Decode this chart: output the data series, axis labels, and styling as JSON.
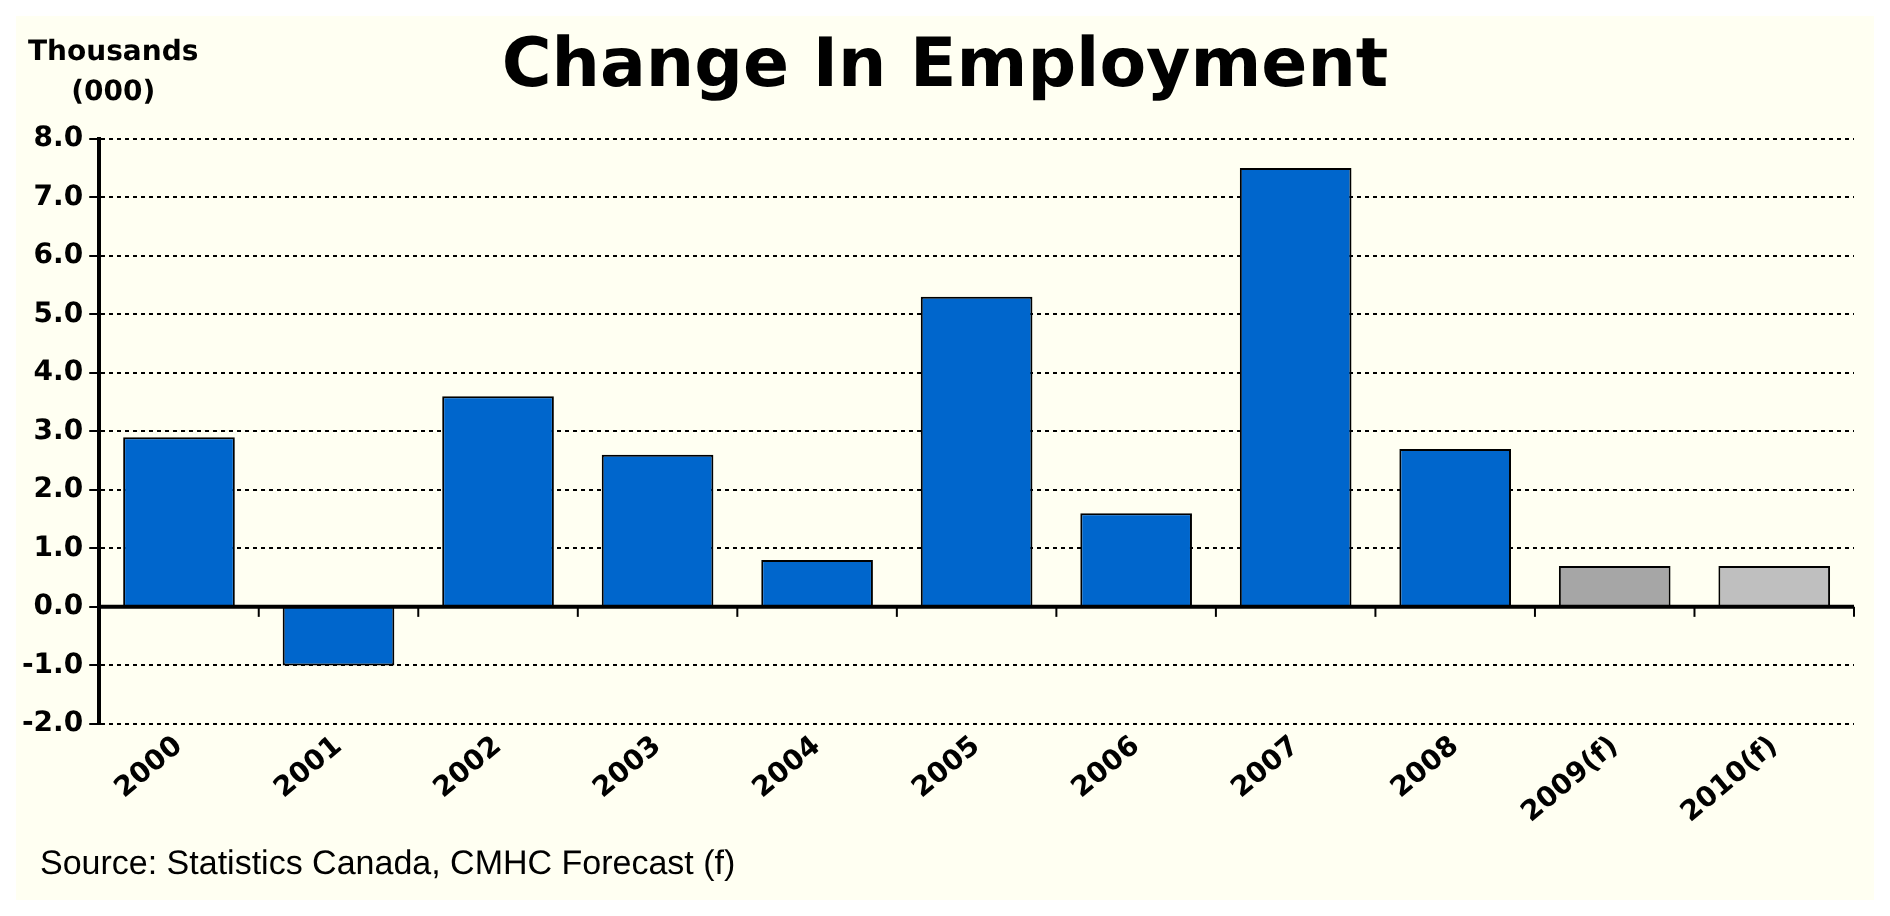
{
  "chart_data": {
    "type": "bar",
    "title": "Change In Employment",
    "ylabel": "Thousands\n(000)",
    "categories": [
      "2000",
      "2001",
      "2002",
      "2003",
      "2004",
      "2005",
      "2006",
      "2007",
      "2008",
      "2009(f)",
      "2010(f)"
    ],
    "values": [
      2.9,
      -1.0,
      3.6,
      2.6,
      0.8,
      5.3,
      1.6,
      7.5,
      2.7,
      0.7,
      0.7
    ],
    "colors": [
      "#0066cc",
      "#0066cc",
      "#0066cc",
      "#0066cc",
      "#0066cc",
      "#0066cc",
      "#0066cc",
      "#0066cc",
      "#0066cc",
      "#a6a6a6",
      "#bfbfbf"
    ],
    "ylim": [
      -2,
      8
    ],
    "yticks": [
      {
        "value": -2,
        "label": "-2.0"
      },
      {
        "value": -1,
        "label": "-1.0"
      },
      {
        "value": 0,
        "label": "0.0"
      },
      {
        "value": 1,
        "label": "1.0"
      },
      {
        "value": 2,
        "label": "2.0"
      },
      {
        "value": 3,
        "label": "3.0"
      },
      {
        "value": 4,
        "label": "4.0"
      },
      {
        "value": 5,
        "label": "5.0"
      },
      {
        "value": 6,
        "label": "6.0"
      },
      {
        "value": 7,
        "label": "7.0"
      },
      {
        "value": 8,
        "label": "8.0"
      }
    ],
    "grid": "y",
    "legend": false,
    "annotations": [
      "Source: Statistics Canada, CMHC Forecast (f)"
    ]
  }
}
